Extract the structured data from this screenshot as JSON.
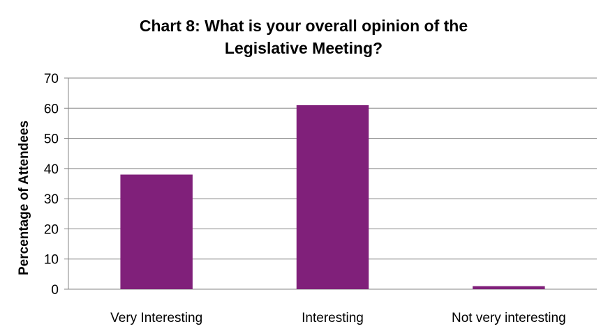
{
  "chart_data": {
    "type": "bar",
    "title": [
      "Chart 8: What is your overall opinion of the",
      "Legislative Meeting?"
    ],
    "xlabel": "",
    "ylabel": "Percentage of Attendees",
    "categories": [
      "Very Interesting",
      "Interesting",
      "Not very interesting"
    ],
    "values": [
      38,
      61,
      1
    ],
    "ylim": [
      0,
      70
    ],
    "yticks": [
      "0",
      "10",
      "20",
      "30",
      "40",
      "50",
      "60",
      "70"
    ],
    "grid": true,
    "legend": "none",
    "bar_color": "#80207a"
  }
}
